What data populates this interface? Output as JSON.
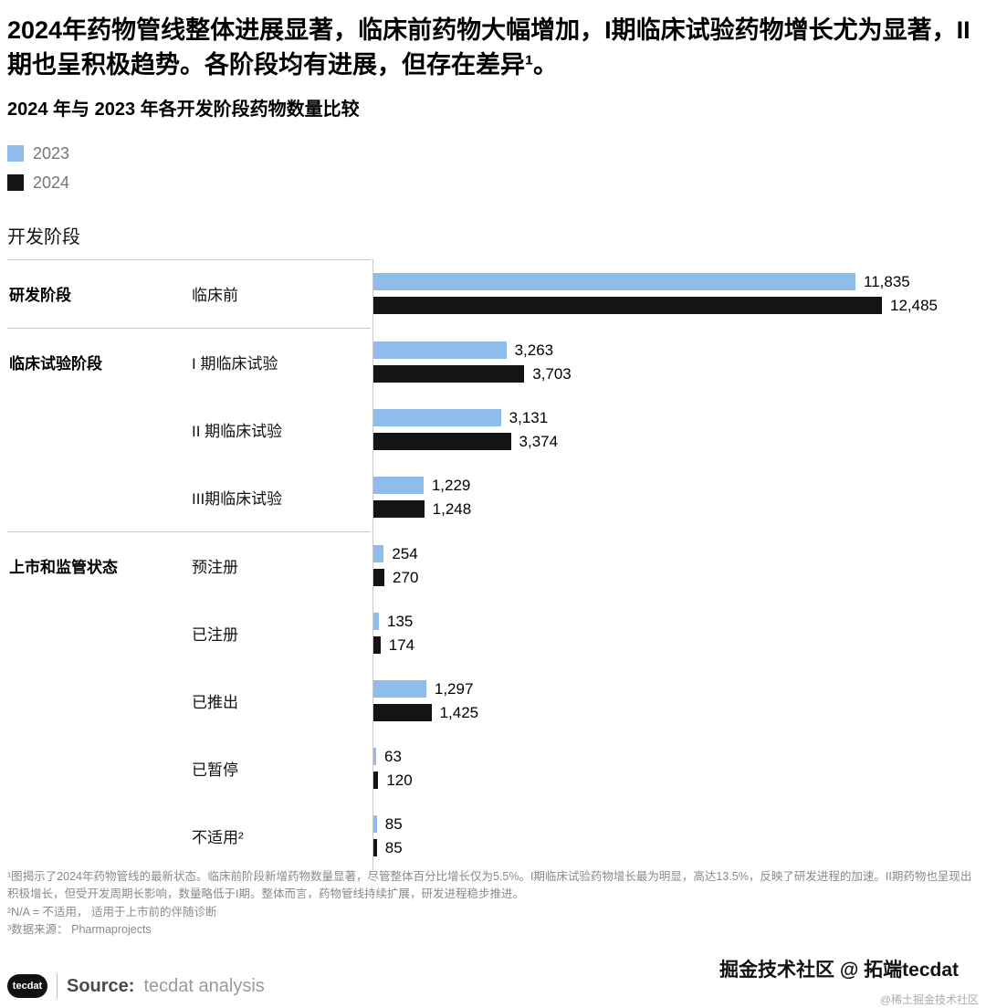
{
  "header": {
    "title": "2024年药物管线整体进展显著，临床前药物大幅增加，I期临床试验药物增长尤为显著，II期也呈积极趋势。各阶段均有进展，但存在差异¹。",
    "subtitle": "2024 年与 2023 年各开发阶段药物数量比较"
  },
  "legend": [
    {
      "label": "2023",
      "color": "#8FBDEB"
    },
    {
      "label": "2024",
      "color": "#141414"
    }
  ],
  "chart_data": {
    "type": "bar",
    "orientation": "horizontal",
    "title": "2024 年与 2023 年各开发阶段药物数量比较",
    "axis_title": "开发阶段",
    "legend": [
      "2023",
      "2024"
    ],
    "series_colors": {
      "2023": "#8FBDEB",
      "2024": "#141414"
    },
    "xmax": 12485,
    "grid": false,
    "legend_position": "top-left",
    "groups": [
      {
        "name": "研发阶段",
        "rows": [
          {
            "category": "临床前",
            "values": {
              "2023": 11835,
              "2024": 12485
            },
            "labels": {
              "2023": "11,835",
              "2024": "12,485"
            }
          }
        ]
      },
      {
        "name": "临床试验阶段",
        "rows": [
          {
            "category": "I 期临床试验",
            "values": {
              "2023": 3263,
              "2024": 3703
            },
            "labels": {
              "2023": "3,263",
              "2024": "3,703"
            }
          },
          {
            "category": "II 期临床试验",
            "values": {
              "2023": 3131,
              "2024": 3374
            },
            "labels": {
              "2023": "3,131",
              "2024": "3,374"
            }
          },
          {
            "category": "III期临床试验",
            "values": {
              "2023": 1229,
              "2024": 1248
            },
            "labels": {
              "2023": "1,229",
              "2024": "1,248"
            }
          }
        ]
      },
      {
        "name": "上市和监管状态",
        "rows": [
          {
            "category": "预注册",
            "values": {
              "2023": 254,
              "2024": 270
            },
            "labels": {
              "2023": "254",
              "2024": "270"
            }
          },
          {
            "category": "已注册",
            "values": {
              "2023": 135,
              "2024": 174
            },
            "labels": {
              "2023": "135",
              "2024": "174"
            }
          },
          {
            "category": "已推出",
            "values": {
              "2023": 1297,
              "2024": 1425
            },
            "labels": {
              "2023": "1,297",
              "2024": "1,425"
            }
          },
          {
            "category": "已暂停",
            "values": {
              "2023": 63,
              "2024": 120
            },
            "labels": {
              "2023": "63",
              "2024": "120"
            }
          },
          {
            "category": "不适用²",
            "values": {
              "2023": 85,
              "2024": 85
            },
            "labels": {
              "2023": "85",
              "2024": "85"
            }
          }
        ]
      }
    ]
  },
  "footnotes": {
    "lines": [
      "¹图揭示了2024年药物管线的最新状态。临床前阶段新增药物数量显著，尽管整体百分比增长仅为5.5%。I期临床试验药物增长最为明显，高达13.5%，反映了研发进程的加速。II期药物也呈现出积极增长，但受开发周期长影响，数量略低于I期。整体而言，药物管线持续扩展，研发进程稳步推进。",
      "²N/A = 不适用， 适用于上市前的伴随诊断",
      "³数据来源： Pharmaprojects"
    ]
  },
  "footer": {
    "logo_text": "tecdat",
    "source_label": "Source:",
    "source_value": "tecdat analysis",
    "watermark": "掘金技术社区 @ 拓端tecdat",
    "watermark_small": "@稀土掘金技术社区"
  }
}
